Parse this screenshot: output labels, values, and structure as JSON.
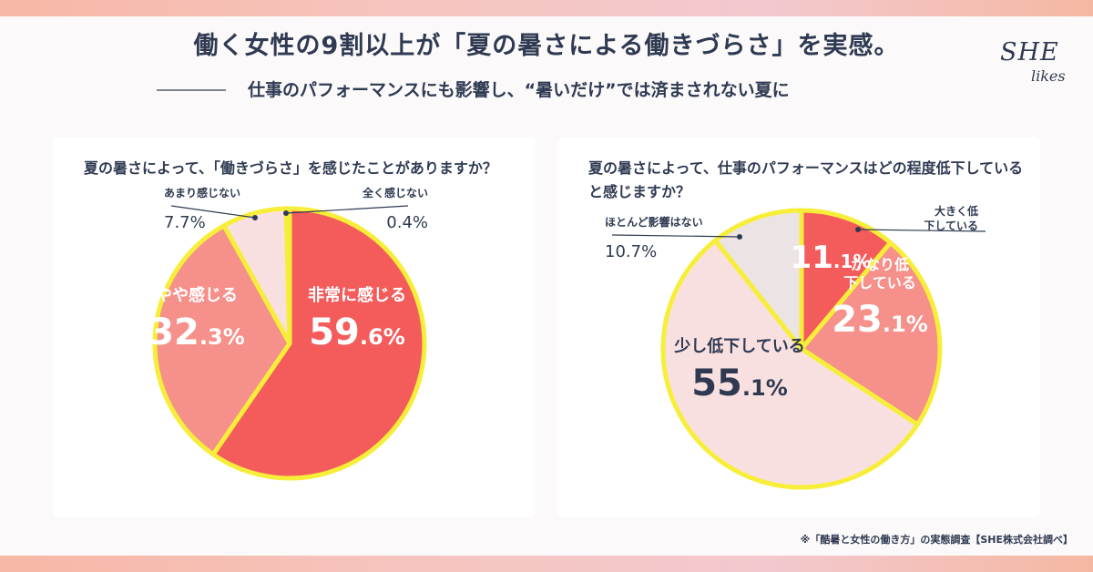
{
  "header": {
    "title": "働く女性の9割以上が「夏の暑さによる働きづらさ」を実感。",
    "subtitle": "仕事のパフォーマンスにも影響し、“暑いだけ”では済まされない夏に"
  },
  "logo": {
    "line1": "SHE",
    "line2": "likes"
  },
  "footnote": "※「酷暑と女性の働き方」の実態調査【SHE株式会社調べ】",
  "chart_data": [
    {
      "type": "pie",
      "title": "夏の暑さによって、「働きづらさ」を感じたことがありますか？",
      "slices": [
        {
          "label": "非常に感じる",
          "value": 59.6,
          "value_text": "59.6%",
          "color": "#f45c5c",
          "label_color": "#ffffff",
          "callout": false
        },
        {
          "label": "やや感じる",
          "value": 32.3,
          "value_text": "32.3%",
          "color": "#f5908a",
          "label_color": "#ffffff",
          "callout": false
        },
        {
          "label": "あまり感じない",
          "value": 7.7,
          "value_text": "7.7%",
          "color": "#f9e0e0",
          "label_color": "#2f3a52",
          "callout": true
        },
        {
          "label": "全く感じない",
          "value": 0.4,
          "value_text": "0.4%",
          "color": "#ece4e4",
          "label_color": "#2f3a52",
          "callout": true
        }
      ],
      "outline_color": "#f7ee3a"
    },
    {
      "type": "pie",
      "title": "夏の暑さによって、仕事のパフォーマンスはどの程度低下していると感じますか？",
      "slices": [
        {
          "label": "大きく低下している",
          "value": 11.1,
          "value_text": "11.1%",
          "color": "#f45c5c",
          "label_color": "#ffffff",
          "callout": true
        },
        {
          "label": "かなり低下している",
          "value": 23.1,
          "value_text": "23.1%",
          "color": "#f5908a",
          "label_color": "#ffffff",
          "callout": false
        },
        {
          "label": "少し低下している",
          "value": 55.1,
          "value_text": "55.1%",
          "color": "#f9e0e0",
          "label_color": "#2f3a52",
          "callout": false
        },
        {
          "label": "ほとんど影響はない",
          "value": 10.7,
          "value_text": "10.7%",
          "color": "#ece4e4",
          "label_color": "#2f3a52",
          "callout": true
        }
      ],
      "outline_color": "#f7ee3a"
    }
  ]
}
